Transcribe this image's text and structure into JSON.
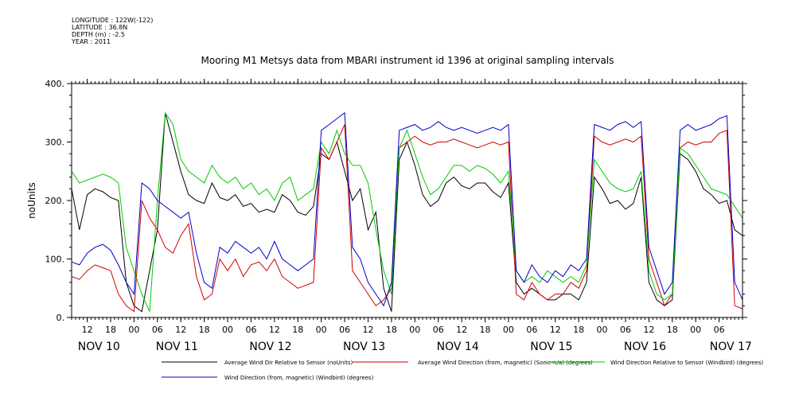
{
  "header": {
    "longitude": "LONGITUDE : 122W(-122)",
    "latitude": "LATITUDE : 36.8N",
    "depth": "DEPTH (m) : -2.5",
    "year": "YEAR : 2011"
  },
  "chart_data": {
    "type": "line",
    "title": "Mooring M1 Metsys data from MBARI instrument id 1396 at original sampling intervals",
    "ylabel": "noUnits",
    "xlabel": "",
    "x_units": "hours since 2011-11-10 08:00",
    "xlim": [
      0,
      172
    ],
    "ylim": [
      0,
      400
    ],
    "y_ticks": [
      0,
      100,
      200,
      300,
      400
    ],
    "y_tick_labels": [
      "0.",
      "100.",
      "200.",
      "300.",
      "400."
    ],
    "hour_tick_labels": [
      {
        "x": 4,
        "label": "12"
      },
      {
        "x": 10,
        "label": "18"
      },
      {
        "x": 16,
        "label": "00"
      },
      {
        "x": 22,
        "label": "06"
      },
      {
        "x": 28,
        "label": "12"
      },
      {
        "x": 34,
        "label": "18"
      },
      {
        "x": 40,
        "label": "00"
      },
      {
        "x": 46,
        "label": "06"
      },
      {
        "x": 52,
        "label": "12"
      },
      {
        "x": 58,
        "label": "18"
      },
      {
        "x": 64,
        "label": "00"
      },
      {
        "x": 70,
        "label": "06"
      },
      {
        "x": 76,
        "label": "12"
      },
      {
        "x": 82,
        "label": "18"
      },
      {
        "x": 88,
        "label": "00"
      },
      {
        "x": 94,
        "label": "06"
      },
      {
        "x": 100,
        "label": "12"
      },
      {
        "x": 106,
        "label": "18"
      },
      {
        "x": 112,
        "label": "00"
      },
      {
        "x": 118,
        "label": "06"
      },
      {
        "x": 124,
        "label": "12"
      },
      {
        "x": 130,
        "label": "18"
      },
      {
        "x": 136,
        "label": "00"
      },
      {
        "x": 142,
        "label": "06"
      },
      {
        "x": 148,
        "label": "12"
      },
      {
        "x": 154,
        "label": "18"
      },
      {
        "x": 160,
        "label": "00"
      },
      {
        "x": 166,
        "label": "06"
      }
    ],
    "day_labels": [
      {
        "x": 7,
        "label": "NOV 10"
      },
      {
        "x": 27,
        "label": "NOV 11"
      },
      {
        "x": 51,
        "label": "NOV 12"
      },
      {
        "x": 75,
        "label": "NOV 13"
      },
      {
        "x": 99,
        "label": "NOV 14"
      },
      {
        "x": 123,
        "label": "NOV 15"
      },
      {
        "x": 147,
        "label": "NOV 16"
      },
      {
        "x": 169,
        "label": "NOV 17"
      }
    ],
    "grid": false,
    "legend_position": "bottom",
    "series": [
      {
        "name": "Average Wind Dir Relative to Sensor (noUnits)",
        "color": "#000000",
        "x": [
          0,
          2,
          4,
          6,
          8,
          10,
          12,
          14,
          16,
          18,
          20,
          22,
          24,
          26,
          28,
          30,
          32,
          34,
          36,
          38,
          40,
          42,
          44,
          46,
          48,
          50,
          52,
          54,
          56,
          58,
          60,
          62,
          64,
          66,
          68,
          70,
          72,
          74,
          76,
          78,
          80,
          82,
          84,
          86,
          88,
          90,
          92,
          94,
          96,
          98,
          100,
          102,
          104,
          106,
          108,
          110,
          112,
          114,
          116,
          118,
          120,
          122,
          124,
          126,
          128,
          130,
          132,
          134,
          136,
          138,
          140,
          142,
          144,
          146,
          148,
          150,
          152,
          154,
          156,
          158,
          160,
          162,
          164,
          166,
          168,
          170,
          172
        ],
        "y": [
          220,
          150,
          210,
          220,
          215,
          205,
          200,
          60,
          20,
          10,
          80,
          150,
          350,
          300,
          250,
          210,
          200,
          195,
          230,
          205,
          200,
          210,
          190,
          195,
          180,
          185,
          180,
          210,
          200,
          180,
          175,
          190,
          280,
          270,
          300,
          250,
          200,
          220,
          150,
          180,
          50,
          10,
          270,
          300,
          260,
          210,
          190,
          200,
          230,
          240,
          225,
          220,
          230,
          230,
          215,
          205,
          230,
          60,
          40,
          50,
          40,
          30,
          30,
          40,
          40,
          30,
          60,
          240,
          220,
          195,
          200,
          185,
          195,
          240,
          60,
          30,
          20,
          30,
          280,
          270,
          250,
          220,
          210,
          195,
          200,
          150,
          140
        ]
      },
      {
        "name": "Average Wind Direction (from, magnetic) (Sonic-n/a) (degrees)",
        "color": "#d00000",
        "x": [
          0,
          2,
          4,
          6,
          8,
          10,
          12,
          14,
          16,
          18,
          20,
          22,
          24,
          26,
          28,
          30,
          32,
          34,
          36,
          38,
          40,
          42,
          44,
          46,
          48,
          50,
          52,
          54,
          56,
          58,
          60,
          62,
          64,
          66,
          68,
          70,
          72,
          74,
          76,
          78,
          80,
          82,
          84,
          86,
          88,
          90,
          92,
          94,
          96,
          98,
          100,
          102,
          104,
          106,
          108,
          110,
          112,
          114,
          116,
          118,
          120,
          122,
          124,
          126,
          128,
          130,
          132,
          134,
          136,
          138,
          140,
          142,
          144,
          146,
          148,
          150,
          152,
          154,
          156,
          158,
          160,
          162,
          164,
          166,
          168,
          170,
          172
        ],
        "y": [
          70,
          65,
          80,
          90,
          85,
          80,
          40,
          20,
          10,
          200,
          170,
          150,
          120,
          110,
          140,
          160,
          70,
          30,
          40,
          100,
          80,
          100,
          70,
          90,
          95,
          80,
          100,
          70,
          60,
          50,
          55,
          60,
          290,
          270,
          300,
          330,
          80,
          60,
          40,
          20,
          30,
          50,
          290,
          300,
          310,
          300,
          295,
          300,
          300,
          305,
          300,
          295,
          290,
          295,
          300,
          295,
          300,
          40,
          30,
          60,
          40,
          30,
          40,
          40,
          60,
          50,
          80,
          310,
          300,
          295,
          300,
          305,
          300,
          310,
          100,
          60,
          20,
          40,
          290,
          300,
          295,
          300,
          300,
          315,
          320,
          20,
          15
        ]
      },
      {
        "name": "Wind Direction Relative to Sensor (Windbird) (degrees)",
        "color": "#00cc00",
        "x": [
          0,
          2,
          4,
          6,
          8,
          10,
          12,
          14,
          16,
          18,
          20,
          22,
          24,
          26,
          28,
          30,
          32,
          34,
          36,
          38,
          40,
          42,
          44,
          46,
          48,
          50,
          52,
          54,
          56,
          58,
          60,
          62,
          64,
          66,
          68,
          70,
          72,
          74,
          76,
          78,
          80,
          82,
          84,
          86,
          88,
          90,
          92,
          94,
          96,
          98,
          100,
          102,
          104,
          106,
          108,
          110,
          112,
          114,
          116,
          118,
          120,
          122,
          124,
          126,
          128,
          130,
          132,
          134,
          136,
          138,
          140,
          142,
          144,
          146,
          148,
          150,
          152,
          154,
          156,
          158,
          160,
          162,
          164,
          166,
          168,
          170,
          172
        ],
        "y": [
          250,
          230,
          235,
          240,
          245,
          240,
          230,
          120,
          80,
          40,
          10,
          200,
          350,
          330,
          270,
          250,
          240,
          230,
          260,
          240,
          230,
          240,
          220,
          230,
          210,
          220,
          200,
          230,
          240,
          200,
          210,
          220,
          300,
          280,
          320,
          280,
          260,
          260,
          230,
          150,
          80,
          40,
          290,
          320,
          280,
          240,
          210,
          220,
          240,
          260,
          260,
          250,
          260,
          255,
          245,
          230,
          250,
          80,
          60,
          70,
          60,
          80,
          70,
          60,
          70,
          60,
          90,
          270,
          250,
          230,
          220,
          215,
          220,
          250,
          80,
          40,
          30,
          40,
          290,
          280,
          260,
          240,
          220,
          215,
          210,
          190,
          170
        ]
      },
      {
        "name": "Wind Direction (from, magnetic) (Windbird) (degrees)",
        "color": "#0000cc",
        "x": [
          0,
          2,
          4,
          6,
          8,
          10,
          12,
          14,
          16,
          18,
          20,
          22,
          24,
          26,
          28,
          30,
          32,
          34,
          36,
          38,
          40,
          42,
          44,
          46,
          48,
          50,
          52,
          54,
          56,
          58,
          60,
          62,
          64,
          66,
          68,
          70,
          72,
          74,
          76,
          78,
          80,
          82,
          84,
          86,
          88,
          90,
          92,
          94,
          96,
          98,
          100,
          102,
          104,
          106,
          108,
          110,
          112,
          114,
          116,
          118,
          120,
          122,
          124,
          126,
          128,
          130,
          132,
          134,
          136,
          138,
          140,
          142,
          144,
          146,
          148,
          150,
          152,
          154,
          156,
          158,
          160,
          162,
          164,
          166,
          168,
          170,
          172
        ],
        "y": [
          95,
          90,
          110,
          120,
          125,
          115,
          90,
          60,
          40,
          230,
          220,
          200,
          190,
          180,
          170,
          180,
          110,
          60,
          50,
          120,
          110,
          130,
          120,
          110,
          120,
          100,
          130,
          100,
          90,
          80,
          90,
          100,
          320,
          330,
          340,
          350,
          120,
          100,
          60,
          40,
          20,
          60,
          320,
          325,
          330,
          320,
          325,
          335,
          325,
          320,
          325,
          320,
          315,
          320,
          325,
          320,
          330,
          80,
          60,
          90,
          70,
          60,
          80,
          70,
          90,
          80,
          100,
          330,
          325,
          320,
          330,
          335,
          325,
          335,
          120,
          80,
          40,
          60,
          320,
          330,
          320,
          325,
          330,
          340,
          345,
          60,
          30
        ]
      }
    ]
  }
}
